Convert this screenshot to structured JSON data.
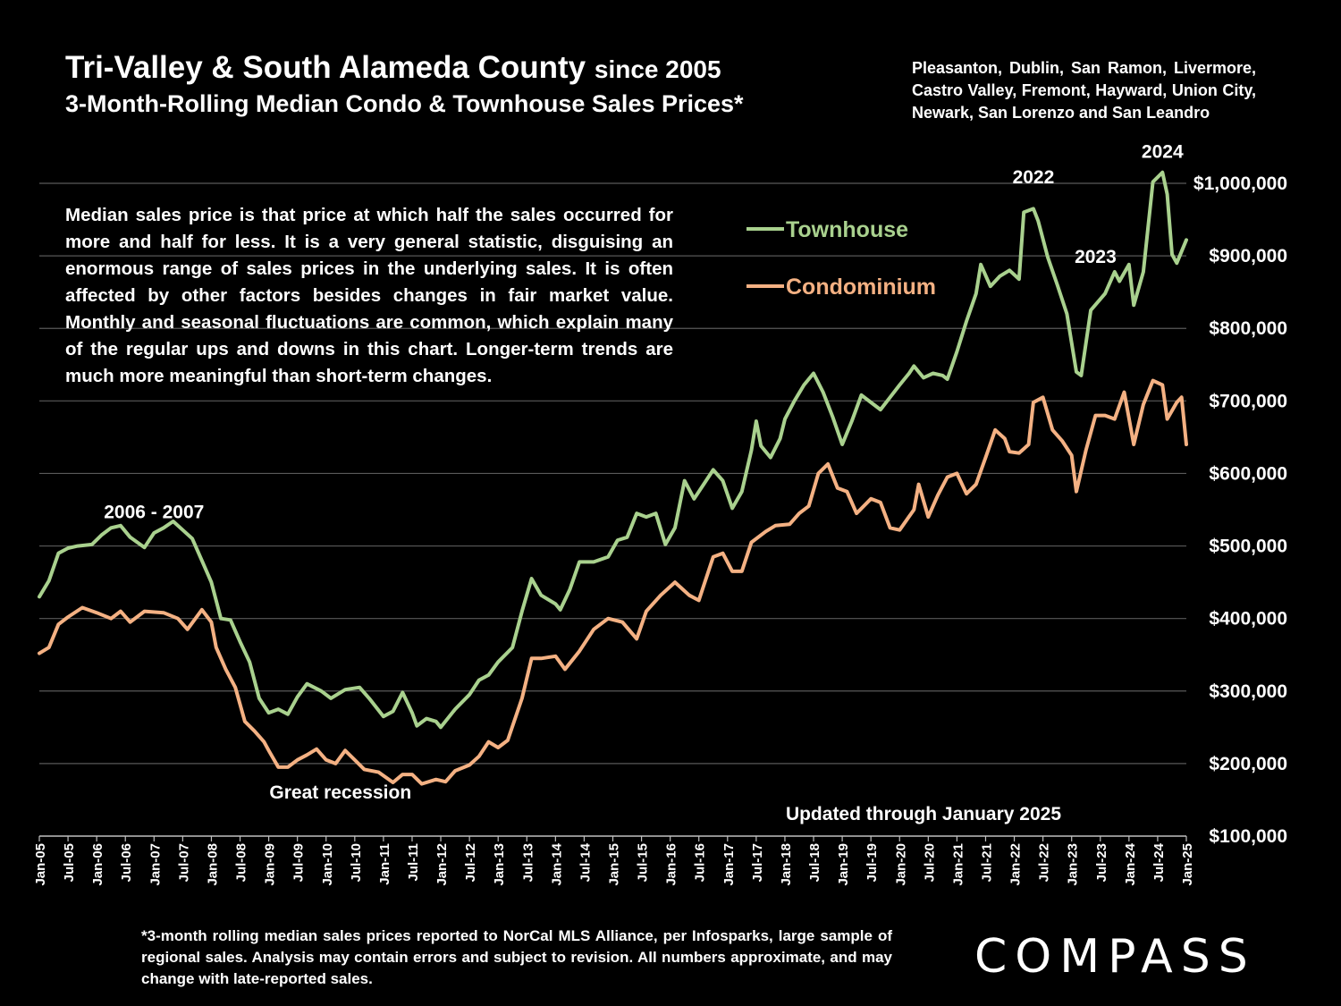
{
  "header": {
    "title_main": "Tri-Valley & South Alameda County",
    "title_since": "since 2005",
    "subtitle": "3-Month-Rolling Median Condo & Townhouse Sales Prices*",
    "areas": "Pleasanton, Dublin, San Ramon, Livermore, Castro Valley, Fremont, Hayward, Union City, Newark, San Lorenzo and San Leandro"
  },
  "note": "Median sales price is that price at which half the sales occurred for more and half for less. It is a very general statistic, disguising an enormous range of sales prices in the underlying sales. It is often affected by other factors besides changes in fair market value. Monthly and seasonal fluctuations are common, which explain many of the regular ups and downs in this chart. Longer-term trends are much more meaningful than short-term changes.",
  "footnote": "*3-month rolling median sales prices reported to NorCal MLS Alliance, per Infosparks, large sample of regional sales. Analysis may contain errors and subject to revision. All numbers approximate, and may change with late-reported sales.",
  "logo": "COMPASS",
  "colors": {
    "background": "#000000",
    "townhouse": "#a9d18e",
    "condominium": "#f4b183",
    "grid": "#595959"
  },
  "chart_data": {
    "type": "line",
    "ylim": [
      100000,
      1000000
    ],
    "xlim": [
      "2005-01",
      "2025-01"
    ],
    "y_ticks": [
      {
        "value": 100000,
        "label": "$100,000"
      },
      {
        "value": 200000,
        "label": "$200,000"
      },
      {
        "value": 300000,
        "label": "$300,000"
      },
      {
        "value": 400000,
        "label": "$400,000"
      },
      {
        "value": 500000,
        "label": "$500,000"
      },
      {
        "value": 600000,
        "label": "$600,000"
      },
      {
        "value": 700000,
        "label": "$700,000"
      },
      {
        "value": 800000,
        "label": "$800,000"
      },
      {
        "value": 900000,
        "label": "$900,000"
      },
      {
        "value": 1000000,
        "label": "$1,000,000"
      }
    ],
    "x_ticks": [
      "Jan-05",
      "Jul-05",
      "Jan-06",
      "Jul-06",
      "Jan-07",
      "Jul-07",
      "Jan-08",
      "Jul-08",
      "Jan-09",
      "Jul-09",
      "Jan-10",
      "Jul-10",
      "Jan-11",
      "Jul-11",
      "Jan-12",
      "Jul-12",
      "Jan-13",
      "Jul-13",
      "Jan-14",
      "Jul-14",
      "Jan-15",
      "Jul-15",
      "Jan-16",
      "Jul-16",
      "Jan-17",
      "Jul-17",
      "Jan-18",
      "Jul-18",
      "Jan-19",
      "Jul-19",
      "Jan-20",
      "Jul-20",
      "Jan-21",
      "Jul-21",
      "Jan-22",
      "Jul-22",
      "Jan-23",
      "Jul-23",
      "Jan-24",
      "Jul-24",
      "Jan-25"
    ],
    "legend_position": "top-center",
    "grid": true,
    "series": [
      {
        "name": "Townhouse",
        "color": "#a9d18e",
        "points": [
          [
            "2005-01",
            430000
          ],
          [
            "2005-03",
            452000
          ],
          [
            "2005-05",
            490000
          ],
          [
            "2005-07",
            497000
          ],
          [
            "2005-09",
            500000
          ],
          [
            "2005-12",
            502000
          ],
          [
            "2006-02",
            515000
          ],
          [
            "2006-04",
            525000
          ],
          [
            "2006-06",
            528000
          ],
          [
            "2006-08",
            512000
          ],
          [
            "2006-11",
            498000
          ],
          [
            "2007-01",
            518000
          ],
          [
            "2007-03",
            525000
          ],
          [
            "2007-05",
            534000
          ],
          [
            "2007-07",
            522000
          ],
          [
            "2007-09",
            510000
          ],
          [
            "2007-11",
            480000
          ],
          [
            "2008-01",
            450000
          ],
          [
            "2008-03",
            400000
          ],
          [
            "2008-05",
            398000
          ],
          [
            "2008-07",
            368000
          ],
          [
            "2008-09",
            340000
          ],
          [
            "2008-11",
            290000
          ],
          [
            "2009-01",
            270000
          ],
          [
            "2009-03",
            275000
          ],
          [
            "2009-05",
            268000
          ],
          [
            "2009-07",
            292000
          ],
          [
            "2009-09",
            310000
          ],
          [
            "2009-12",
            300000
          ],
          [
            "2010-02",
            290000
          ],
          [
            "2010-05",
            302000
          ],
          [
            "2010-08",
            305000
          ],
          [
            "2010-10",
            290000
          ],
          [
            "2011-01",
            265000
          ],
          [
            "2011-03",
            272000
          ],
          [
            "2011-05",
            298000
          ],
          [
            "2011-07",
            270000
          ],
          [
            "2011-08",
            252000
          ],
          [
            "2011-10",
            262000
          ],
          [
            "2011-12",
            258000
          ],
          [
            "2012-01",
            250000
          ],
          [
            "2012-04",
            275000
          ],
          [
            "2012-07",
            295000
          ],
          [
            "2012-09",
            315000
          ],
          [
            "2012-11",
            322000
          ],
          [
            "2013-01",
            340000
          ],
          [
            "2013-04",
            360000
          ],
          [
            "2013-06",
            410000
          ],
          [
            "2013-08",
            455000
          ],
          [
            "2013-10",
            432000
          ],
          [
            "2014-01",
            420000
          ],
          [
            "2014-02",
            412000
          ],
          [
            "2014-04",
            440000
          ],
          [
            "2014-06",
            478000
          ],
          [
            "2014-09",
            478000
          ],
          [
            "2014-12",
            485000
          ],
          [
            "2015-02",
            508000
          ],
          [
            "2015-04",
            512000
          ],
          [
            "2015-06",
            545000
          ],
          [
            "2015-08",
            540000
          ],
          [
            "2015-10",
            545000
          ],
          [
            "2015-12",
            502000
          ],
          [
            "2016-02",
            525000
          ],
          [
            "2016-04",
            590000
          ],
          [
            "2016-06",
            565000
          ],
          [
            "2016-08",
            585000
          ],
          [
            "2016-10",
            605000
          ],
          [
            "2016-12",
            590000
          ],
          [
            "2017-02",
            552000
          ],
          [
            "2017-04",
            575000
          ],
          [
            "2017-06",
            632000
          ],
          [
            "2017-07",
            672000
          ],
          [
            "2017-08",
            638000
          ],
          [
            "2017-10",
            622000
          ],
          [
            "2017-12",
            648000
          ],
          [
            "2018-01",
            675000
          ],
          [
            "2018-03",
            700000
          ],
          [
            "2018-05",
            722000
          ],
          [
            "2018-07",
            738000
          ],
          [
            "2018-09",
            712000
          ],
          [
            "2018-11",
            678000
          ],
          [
            "2019-01",
            640000
          ],
          [
            "2019-03",
            672000
          ],
          [
            "2019-05",
            708000
          ],
          [
            "2019-07",
            698000
          ],
          [
            "2019-09",
            688000
          ],
          [
            "2019-11",
            705000
          ],
          [
            "2020-01",
            722000
          ],
          [
            "2020-03",
            738000
          ],
          [
            "2020-04",
            748000
          ],
          [
            "2020-06",
            732000
          ],
          [
            "2020-08",
            738000
          ],
          [
            "2020-10",
            735000
          ],
          [
            "2020-11",
            730000
          ],
          [
            "2021-01",
            768000
          ],
          [
            "2021-03",
            810000
          ],
          [
            "2021-05",
            848000
          ],
          [
            "2021-06",
            888000
          ],
          [
            "2021-08",
            858000
          ],
          [
            "2021-10",
            872000
          ],
          [
            "2021-12",
            880000
          ],
          [
            "2022-02",
            868000
          ],
          [
            "2022-03",
            960000
          ],
          [
            "2022-05",
            965000
          ],
          [
            "2022-06",
            948000
          ],
          [
            "2022-08",
            898000
          ],
          [
            "2022-10",
            860000
          ],
          [
            "2022-12",
            820000
          ],
          [
            "2023-02",
            740000
          ],
          [
            "2023-03",
            735000
          ],
          [
            "2023-05",
            825000
          ],
          [
            "2023-08",
            848000
          ],
          [
            "2023-10",
            878000
          ],
          [
            "2023-11",
            865000
          ],
          [
            "2024-01",
            888000
          ],
          [
            "2024-02",
            832000
          ],
          [
            "2024-04",
            878000
          ],
          [
            "2024-06",
            1002000
          ],
          [
            "2024-08",
            1015000
          ],
          [
            "2024-09",
            985000
          ],
          [
            "2024-10",
            902000
          ],
          [
            "2024-11",
            890000
          ],
          [
            "2025-01",
            922000
          ]
        ]
      },
      {
        "name": "Condominium",
        "color": "#f4b183",
        "points": [
          [
            "2005-01",
            352000
          ],
          [
            "2005-03",
            360000
          ],
          [
            "2005-05",
            392000
          ],
          [
            "2005-07",
            402000
          ],
          [
            "2005-10",
            415000
          ],
          [
            "2006-01",
            408000
          ],
          [
            "2006-04",
            400000
          ],
          [
            "2006-06",
            410000
          ],
          [
            "2006-08",
            395000
          ],
          [
            "2006-11",
            410000
          ],
          [
            "2007-03",
            408000
          ],
          [
            "2007-06",
            400000
          ],
          [
            "2007-08",
            385000
          ],
          [
            "2007-11",
            412000
          ],
          [
            "2008-01",
            395000
          ],
          [
            "2008-02",
            360000
          ],
          [
            "2008-04",
            330000
          ],
          [
            "2008-06",
            305000
          ],
          [
            "2008-08",
            258000
          ],
          [
            "2008-10",
            245000
          ],
          [
            "2008-12",
            230000
          ],
          [
            "2009-01",
            218000
          ],
          [
            "2009-03",
            195000
          ],
          [
            "2009-05",
            195000
          ],
          [
            "2009-07",
            205000
          ],
          [
            "2009-09",
            212000
          ],
          [
            "2009-11",
            220000
          ],
          [
            "2010-01",
            205000
          ],
          [
            "2010-03",
            200000
          ],
          [
            "2010-05",
            218000
          ],
          [
            "2010-07",
            205000
          ],
          [
            "2010-09",
            192000
          ],
          [
            "2010-12",
            188000
          ],
          [
            "2011-03",
            174000
          ],
          [
            "2011-05",
            185000
          ],
          [
            "2011-07",
            185000
          ],
          [
            "2011-09",
            172000
          ],
          [
            "2011-12",
            178000
          ],
          [
            "2012-02",
            175000
          ],
          [
            "2012-04",
            190000
          ],
          [
            "2012-07",
            198000
          ],
          [
            "2012-09",
            210000
          ],
          [
            "2012-11",
            230000
          ],
          [
            "2013-01",
            222000
          ],
          [
            "2013-03",
            232000
          ],
          [
            "2013-06",
            290000
          ],
          [
            "2013-08",
            345000
          ],
          [
            "2013-10",
            345000
          ],
          [
            "2014-01",
            348000
          ],
          [
            "2014-03",
            330000
          ],
          [
            "2014-06",
            355000
          ],
          [
            "2014-09",
            385000
          ],
          [
            "2014-12",
            400000
          ],
          [
            "2015-03",
            395000
          ],
          [
            "2015-06",
            372000
          ],
          [
            "2015-08",
            410000
          ],
          [
            "2015-11",
            432000
          ],
          [
            "2016-02",
            450000
          ],
          [
            "2016-05",
            432000
          ],
          [
            "2016-07",
            425000
          ],
          [
            "2016-10",
            485000
          ],
          [
            "2016-12",
            490000
          ],
          [
            "2017-02",
            465000
          ],
          [
            "2017-04",
            465000
          ],
          [
            "2017-06",
            505000
          ],
          [
            "2017-09",
            520000
          ],
          [
            "2017-11",
            528000
          ],
          [
            "2018-02",
            530000
          ],
          [
            "2018-04",
            545000
          ],
          [
            "2018-06",
            555000
          ],
          [
            "2018-08",
            600000
          ],
          [
            "2018-10",
            613000
          ],
          [
            "2018-12",
            580000
          ],
          [
            "2019-02",
            575000
          ],
          [
            "2019-04",
            545000
          ],
          [
            "2019-07",
            565000
          ],
          [
            "2019-09",
            560000
          ],
          [
            "2019-11",
            525000
          ],
          [
            "2020-01",
            522000
          ],
          [
            "2020-04",
            550000
          ],
          [
            "2020-05",
            585000
          ],
          [
            "2020-07",
            540000
          ],
          [
            "2020-09",
            570000
          ],
          [
            "2020-11",
            595000
          ],
          [
            "2021-01",
            600000
          ],
          [
            "2021-03",
            572000
          ],
          [
            "2021-05",
            585000
          ],
          [
            "2021-07",
            622000
          ],
          [
            "2021-09",
            660000
          ],
          [
            "2021-11",
            648000
          ],
          [
            "2021-12",
            630000
          ],
          [
            "2022-02",
            628000
          ],
          [
            "2022-04",
            640000
          ],
          [
            "2022-05",
            698000
          ],
          [
            "2022-07",
            705000
          ],
          [
            "2022-09",
            660000
          ],
          [
            "2022-11",
            645000
          ],
          [
            "2023-01",
            625000
          ],
          [
            "2023-02",
            575000
          ],
          [
            "2023-04",
            632000
          ],
          [
            "2023-06",
            680000
          ],
          [
            "2023-08",
            680000
          ],
          [
            "2023-10",
            675000
          ],
          [
            "2023-12",
            712000
          ],
          [
            "2024-02",
            640000
          ],
          [
            "2024-04",
            695000
          ],
          [
            "2024-06",
            728000
          ],
          [
            "2024-08",
            722000
          ],
          [
            "2024-09",
            675000
          ],
          [
            "2024-11",
            698000
          ],
          [
            "2024-12",
            705000
          ],
          [
            "2025-01",
            640000
          ]
        ]
      }
    ],
    "annotations": [
      {
        "text": "2006 - 2007",
        "at": [
          "2007-01",
          538000
        ]
      },
      {
        "text": "Great recession",
        "at": [
          "2010-04",
          152000
        ]
      },
      {
        "text": "2022",
        "at": [
          "2022-05",
          1000000
        ]
      },
      {
        "text": "2023",
        "at": [
          "2023-06",
          890000
        ]
      },
      {
        "text": "2024",
        "at": [
          "2024-08",
          1035000
        ]
      },
      {
        "text": "Updated through January 2025",
        "at": [
          "2020-06",
          122000
        ]
      }
    ]
  }
}
